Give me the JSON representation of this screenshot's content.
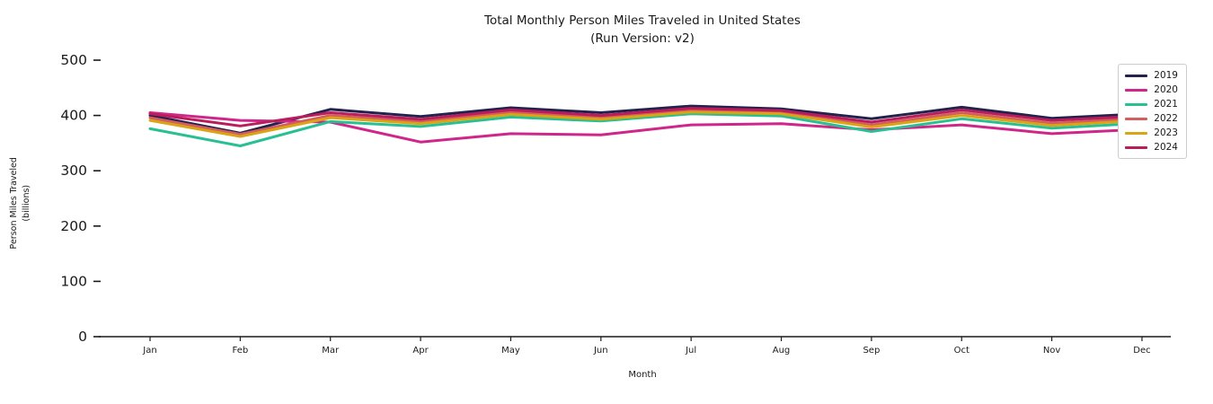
{
  "title": {
    "line1": "Total Monthly Person Miles Traveled in United States",
    "line2": "(Run Version: v2)"
  },
  "axes": {
    "xlabel": "Month",
    "ylabel_line1": "Person Miles Traveled",
    "ylabel_line2": "(billions)",
    "ytick_labels": [
      "0",
      "100",
      "200",
      "300",
      "400",
      "500"
    ]
  },
  "chart_data": {
    "type": "line",
    "title": "Total Monthly Person Miles Traveled in United States (Run Version: v2)",
    "xlabel": "Month",
    "ylabel": "Person Miles Traveled (billions)",
    "x": [
      "Jan",
      "Feb",
      "Mar",
      "Apr",
      "May",
      "Jun",
      "Jul",
      "Aug",
      "Sep",
      "Oct",
      "Nov",
      "Dec"
    ],
    "ylim": [
      0,
      500
    ],
    "yticks": [
      0,
      100,
      200,
      300,
      400,
      500
    ],
    "grid": false,
    "legend_position": "upper right",
    "series": [
      {
        "name": "2019",
        "color": "#22224e",
        "values": [
          400,
          368,
          411,
          398,
          414,
          405,
          417,
          412,
          394,
          415,
          395,
          403
        ]
      },
      {
        "name": "2020",
        "color": "#cf268a",
        "values": [
          405,
          391,
          388,
          352,
          367,
          365,
          383,
          385,
          374,
          383,
          367,
          375
        ]
      },
      {
        "name": "2021",
        "color": "#28bf93",
        "values": [
          376,
          345,
          389,
          380,
          397,
          390,
          403,
          399,
          371,
          394,
          377,
          386
        ]
      },
      {
        "name": "2022",
        "color": "#d45d5d",
        "values": [
          396,
          366,
          400,
          389,
          406,
          396,
          409,
          406,
          383,
          405,
          386,
          395
        ]
      },
      {
        "name": "2023",
        "color": "#d9a514",
        "values": [
          391,
          362,
          396,
          385,
          402,
          393,
          406,
          403,
          379,
          400,
          382,
          391
        ]
      },
      {
        "name": "2024",
        "color": "#bb1d5c",
        "values": [
          403,
          381,
          405,
          393,
          410,
          400,
          413,
          409,
          388,
          410,
          391,
          399
        ]
      }
    ]
  }
}
